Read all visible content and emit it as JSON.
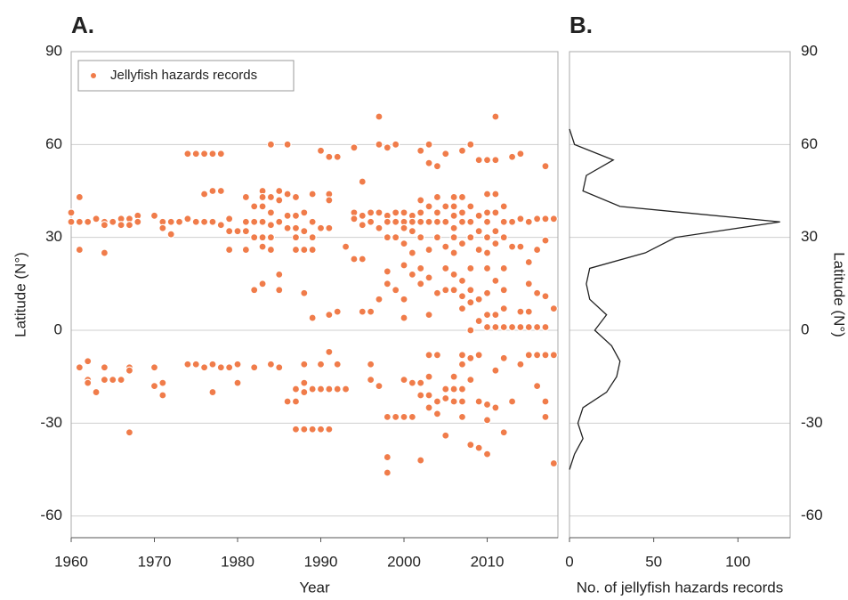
{
  "chart_data": [
    {
      "type": "scatter",
      "title": "A.",
      "x_label": "Year",
      "y_label": "Latitude (N°)",
      "xlim": [
        1960,
        2018.5
      ],
      "xticks": [
        1960,
        1970,
        1980,
        1990,
        2000,
        2010
      ],
      "ylim": [
        -67,
        90
      ],
      "yticks": [
        90,
        60,
        30,
        0,
        -30,
        -60
      ],
      "grid": true,
      "legend": "upper left",
      "series": [
        {
          "name": "Jellyfish hazards records",
          "color": "#f07c4a",
          "x": [
            1960,
            1960,
            1961,
            1961,
            1961,
            1961,
            1962,
            1962,
            1962,
            1962,
            1963,
            1963,
            1964,
            1964,
            1964,
            1964,
            1964,
            1965,
            1965,
            1966,
            1966,
            1966,
            1967,
            1967,
            1967,
            1967,
            1967,
            1968,
            1968,
            1970,
            1970,
            1970,
            1971,
            1971,
            1971,
            1971,
            1972,
            1972,
            1973,
            1974,
            1974,
            1974,
            1975,
            1975,
            1975,
            1976,
            1976,
            1976,
            1976,
            1977,
            1977,
            1977,
            1977,
            1977,
            1978,
            1978,
            1978,
            1978,
            1979,
            1979,
            1979,
            1979,
            1980,
            1980,
            1980,
            1981,
            1981,
            1981,
            1981,
            1982,
            1982,
            1982,
            1982,
            1982,
            1983,
            1983,
            1983,
            1983,
            1983,
            1983,
            1983,
            1984,
            1984,
            1984,
            1984,
            1984,
            1984,
            1984,
            1985,
            1985,
            1985,
            1985,
            1985,
            1985,
            1986,
            1986,
            1986,
            1986,
            1986,
            1987,
            1987,
            1987,
            1987,
            1987,
            1987,
            1987,
            1987,
            1988,
            1988,
            1988,
            1988,
            1988,
            1988,
            1988,
            1988,
            1989,
            1989,
            1989,
            1989,
            1989,
            1989,
            1989,
            1990,
            1990,
            1990,
            1990,
            1990,
            1991,
            1991,
            1991,
            1991,
            1991,
            1991,
            1991,
            1991,
            1992,
            1992,
            1992,
            1992,
            1993,
            1993,
            1994,
            1994,
            1994,
            1994,
            1995,
            1995,
            1995,
            1995,
            1995,
            1996,
            1996,
            1996,
            1996,
            1996,
            1997,
            1997,
            1997,
            1997,
            1997,
            1997,
            1998,
            1998,
            1998,
            1998,
            1998,
            1998,
            1998,
            1998,
            1998,
            1999,
            1999,
            1999,
            1999,
            1999,
            1999,
            2000,
            2000,
            2000,
            2000,
            2000,
            2000,
            2000,
            2000,
            2000,
            2001,
            2001,
            2001,
            2001,
            2001,
            2001,
            2001,
            2002,
            2002,
            2002,
            2002,
            2002,
            2002,
            2002,
            2002,
            2002,
            2002,
            2003,
            2003,
            2003,
            2003,
            2003,
            2003,
            2003,
            2003,
            2003,
            2003,
            2003,
            2004,
            2004,
            2004,
            2004,
            2004,
            2004,
            2004,
            2004,
            2004,
            2005,
            2005,
            2005,
            2005,
            2005,
            2005,
            2005,
            2005,
            2005,
            2006,
            2006,
            2006,
            2006,
            2006,
            2006,
            2006,
            2006,
            2006,
            2006,
            2006,
            2007,
            2007,
            2007,
            2007,
            2007,
            2007,
            2007,
            2007,
            2007,
            2007,
            2007,
            2007,
            2007,
            2008,
            2008,
            2008,
            2008,
            2008,
            2008,
            2008,
            2008,
            2008,
            2008,
            2008,
            2009,
            2009,
            2009,
            2009,
            2009,
            2009,
            2009,
            2009,
            2009,
            2010,
            2010,
            2010,
            2010,
            2010,
            2010,
            2010,
            2010,
            2010,
            2010,
            2010,
            2010,
            2010,
            2011,
            2011,
            2011,
            2011,
            2011,
            2011,
            2011,
            2011,
            2011,
            2011,
            2011,
            2012,
            2012,
            2012,
            2012,
            2012,
            2012,
            2012,
            2012,
            2012,
            2013,
            2013,
            2013,
            2013,
            2013,
            2014,
            2014,
            2014,
            2014,
            2014,
            2014,
            2015,
            2015,
            2015,
            2015,
            2015,
            2015,
            2016,
            2016,
            2016,
            2016,
            2016,
            2016,
            2017,
            2017,
            2017,
            2017,
            2017,
            2017,
            2017,
            2017,
            2018,
            2018,
            2018,
            2018
          ],
          "values": [
            38,
            35,
            43,
            35,
            26,
            -12,
            35,
            -10,
            -16,
            -17,
            36,
            -20,
            35,
            34,
            25,
            -12,
            -16,
            35,
            -16,
            36,
            34,
            -16,
            36,
            34,
            -12,
            -13,
            -33,
            37,
            35,
            37,
            -12,
            -18,
            35,
            33,
            -17,
            -21,
            35,
            31,
            35,
            57,
            36,
            -11,
            57,
            35,
            -11,
            57,
            44,
            35,
            -12,
            57,
            45,
            35,
            -11,
            -20,
            57,
            45,
            34,
            -12,
            36,
            32,
            26,
            -12,
            32,
            -11,
            -17,
            43,
            35,
            32,
            26,
            40,
            35,
            30,
            13,
            -12,
            45,
            43,
            40,
            35,
            30,
            27,
            15,
            60,
            43,
            38,
            34,
            30,
            26,
            -11,
            45,
            42,
            35,
            18,
            13,
            -12,
            60,
            44,
            37,
            33,
            -23,
            43,
            37,
            33,
            30,
            26,
            -23,
            -19,
            -32,
            38,
            32,
            26,
            12,
            -11,
            -17,
            -20,
            -32,
            44,
            35,
            30,
            26,
            4,
            -19,
            -32,
            58,
            33,
            -11,
            -19,
            -32,
            56,
            44,
            42,
            33,
            5,
            -7,
            -19,
            -32,
            56,
            6,
            -11,
            -19,
            27,
            -19,
            59,
            38,
            36,
            23,
            48,
            37,
            34,
            23,
            6,
            38,
            35,
            6,
            -11,
            -16,
            69,
            60,
            38,
            33,
            10,
            -18,
            59,
            37,
            35,
            30,
            19,
            15,
            -28,
            -41,
            -46,
            60,
            38,
            35,
            30,
            13,
            -28,
            38,
            35,
            33,
            28,
            21,
            10,
            4,
            -16,
            -28,
            37,
            35,
            32,
            25,
            18,
            -17,
            -28,
            58,
            42,
            38,
            35,
            30,
            20,
            15,
            -17,
            -21,
            -42,
            60,
            54,
            40,
            35,
            26,
            17,
            5,
            -8,
            -15,
            -21,
            -25,
            53,
            43,
            38,
            35,
            30,
            12,
            -8,
            -23,
            -27,
            57,
            40,
            35,
            27,
            20,
            13,
            -19,
            -22,
            -34,
            43,
            40,
            37,
            33,
            30,
            25,
            18,
            13,
            -15,
            -19,
            -23,
            58,
            43,
            38,
            35,
            28,
            16,
            11,
            7,
            -8,
            -11,
            -19,
            -23,
            -28,
            60,
            40,
            35,
            30,
            20,
            13,
            9,
            0,
            -9,
            -16,
            -37,
            55,
            37,
            32,
            26,
            10,
            3,
            -8,
            -23,
            -38,
            55,
            44,
            38,
            35,
            30,
            25,
            20,
            12,
            5,
            1,
            -24,
            -29,
            -40,
            69,
            55,
            44,
            38,
            32,
            28,
            16,
            5,
            1,
            -13,
            -25,
            40,
            35,
            30,
            20,
            13,
            7,
            1,
            -9,
            -33,
            56,
            35,
            27,
            1,
            -23,
            57,
            36,
            27,
            6,
            1,
            -11,
            35,
            22,
            15,
            6,
            1,
            -8,
            36,
            26,
            12,
            1,
            -8,
            -18,
            53,
            36,
            29,
            11,
            1,
            -8,
            -23,
            -28,
            36,
            7,
            -8,
            -43
          ]
        }
      ]
    },
    {
      "type": "line",
      "title": "B.",
      "x_label": "No. of jellyfish hazards records",
      "y_label": "Latitude (N°)",
      "xlim": [
        0,
        131
      ],
      "xticks": [
        0,
        50,
        100
      ],
      "ylim": [
        -67,
        90
      ],
      "yticks": [
        90,
        60,
        30,
        0,
        -30,
        -60
      ],
      "grid": true,
      "color": "#222222",
      "y": [
        65,
        60,
        55,
        50,
        45,
        40,
        35,
        30,
        25,
        20,
        15,
        10,
        5,
        0,
        -5,
        -10,
        -15,
        -20,
        -25,
        -30,
        -35,
        -40,
        -45
      ],
      "values": [
        0,
        3,
        26,
        10,
        8,
        30,
        125,
        63,
        45,
        12,
        10,
        12,
        22,
        15,
        25,
        30,
        28,
        22,
        8,
        5,
        8,
        3,
        0
      ]
    }
  ]
}
